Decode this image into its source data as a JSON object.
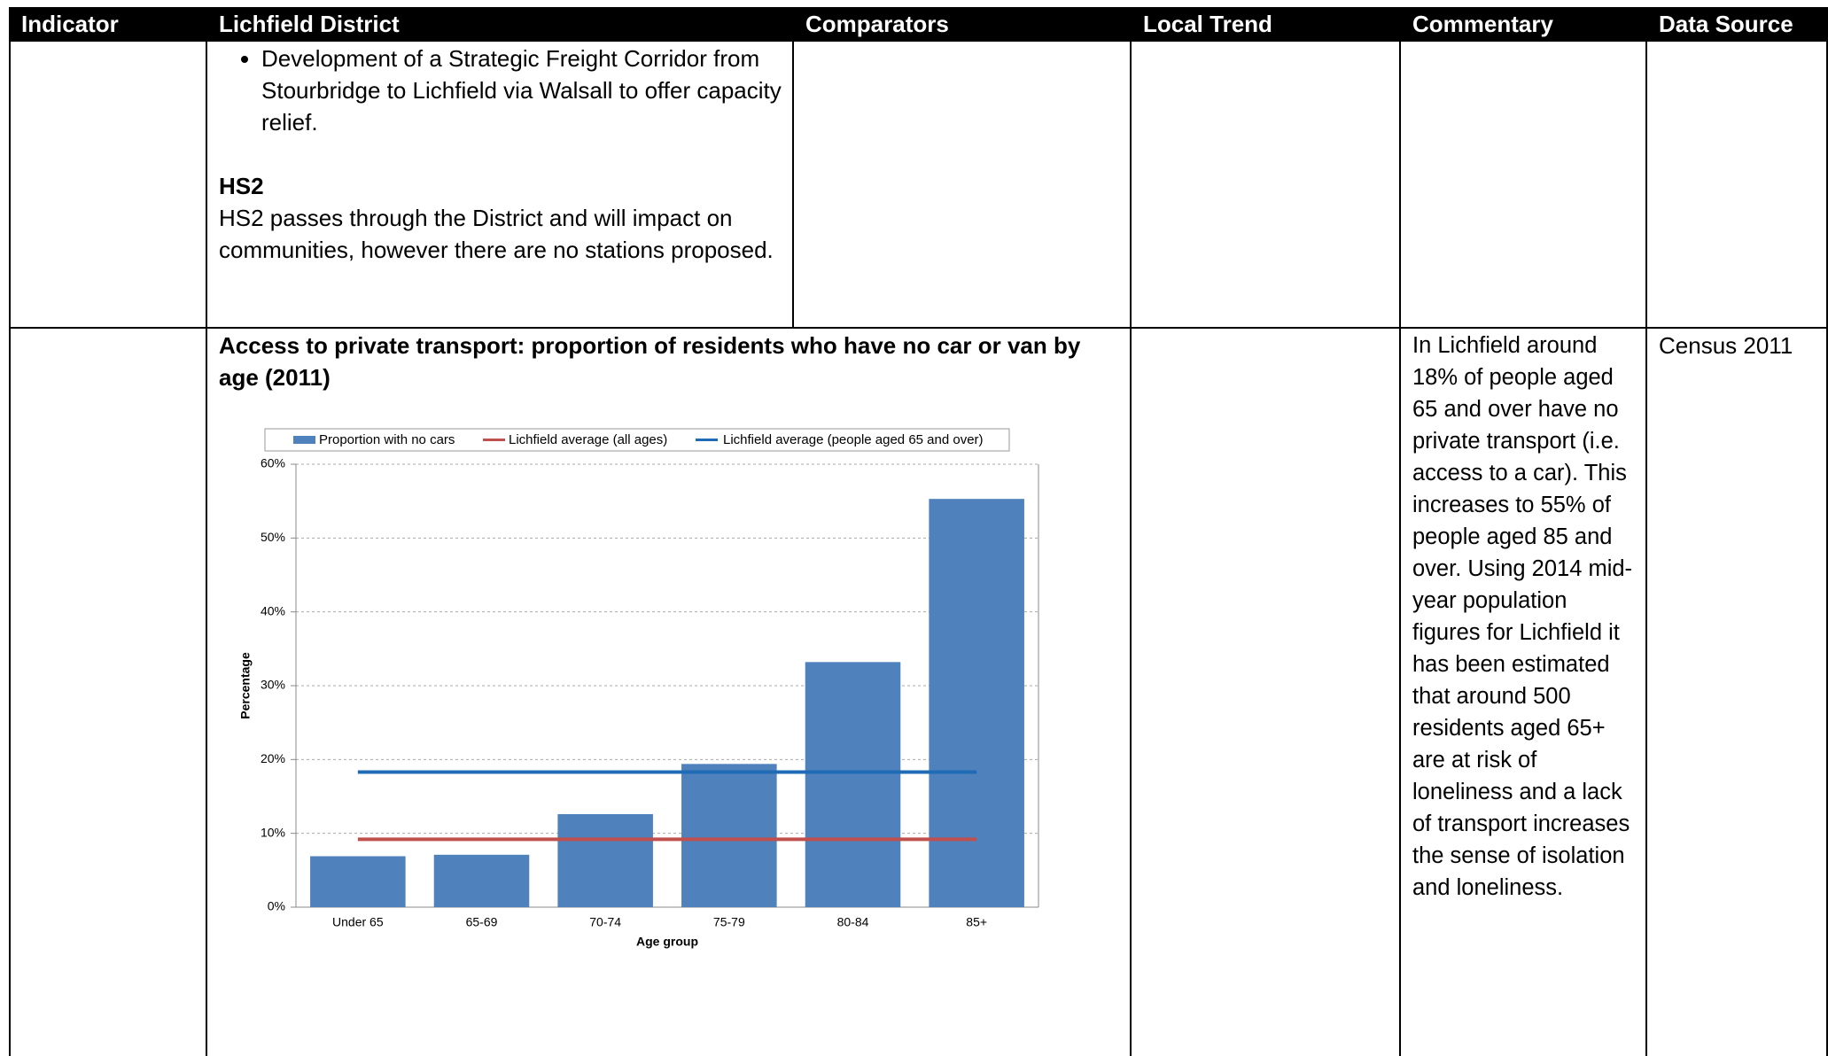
{
  "table": {
    "headers": [
      "Indicator",
      "Lichfield District",
      "Comparators",
      "Local Trend",
      "Commentary",
      "Data Source"
    ],
    "rows": [
      {
        "lichfield": {
          "bullets": [
            "Development of a Strategic Freight Corridor from Stourbridge to Lichfield via Walsall to offer capacity relief."
          ],
          "heading": "HS2",
          "text": "HS2 passes through the District and will impact on communities, however there are no stations proposed."
        }
      },
      {
        "lichfield": {
          "chart_title": "Access to private transport: proportion of residents who have no car or van by age (2011)"
        },
        "commentary": "In Lichfield around 18% of people aged 65 and over have no private transport (i.e. access to a car). This increases to 55% of people aged 85 and over. Using 2014 mid-year population figures for Lichfield it has been estimated that around 500 residents aged 65+ are at risk of loneliness and a lack of transport increases the sense of isolation and loneliness.",
        "data_source": "Census 2011"
      }
    ]
  },
  "chart_data": {
    "type": "bar",
    "x_label": "Age group",
    "y_label": "Percentage",
    "categories": [
      "Under 65",
      "65-69",
      "70-74",
      "75-79",
      "80-84",
      "85+"
    ],
    "series": [
      {
        "name": "Proportion with no cars",
        "type": "bar",
        "color": "#4f81bd",
        "values": [
          6.9,
          7.1,
          12.6,
          19.4,
          33.2,
          55.3
        ]
      },
      {
        "name": "Lichfield average (all ages)",
        "type": "line",
        "color": "#c0504d",
        "values": [
          9.2,
          9.2,
          9.2,
          9.2,
          9.2,
          9.2
        ]
      },
      {
        "name": "Lichfield average (people aged 65 and over)",
        "type": "line",
        "color": "#1f6bb5",
        "values": [
          18.3,
          18.3,
          18.3,
          18.3,
          18.3,
          18.3
        ]
      }
    ],
    "ylim": [
      0,
      60
    ],
    "yticks": [
      {
        "value": 0,
        "label": "0%"
      },
      {
        "value": 10,
        "label": "10%"
      },
      {
        "value": 20,
        "label": "20%"
      },
      {
        "value": 30,
        "label": "30%"
      },
      {
        "value": 40,
        "label": "40%"
      },
      {
        "value": 50,
        "label": "50%"
      },
      {
        "value": 60,
        "label": "60%"
      }
    ],
    "grid": true,
    "legend": "top"
  }
}
